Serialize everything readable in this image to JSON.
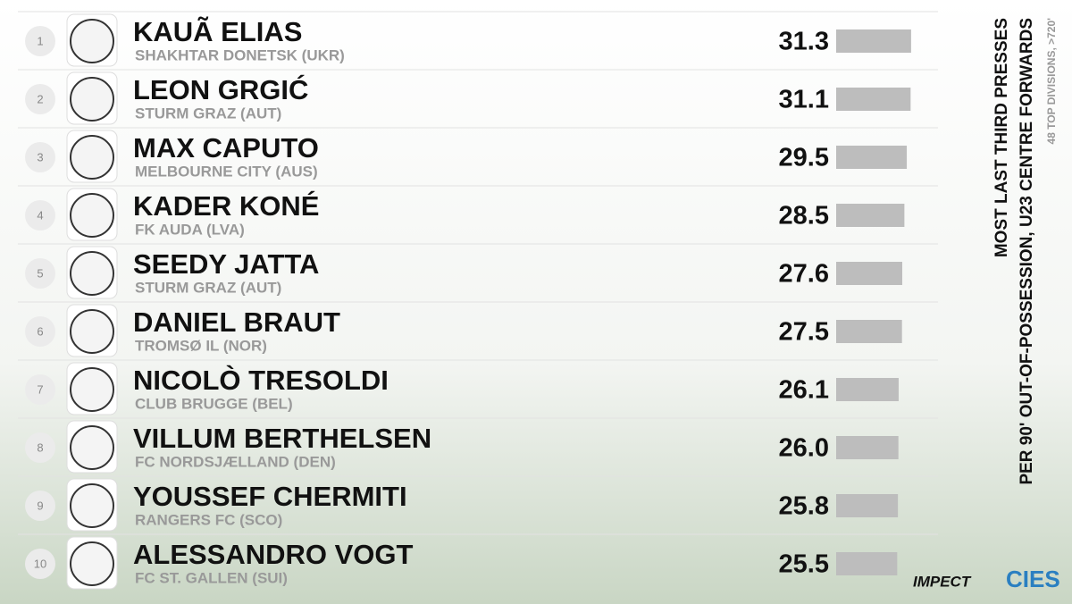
{
  "chart_data": {
    "type": "bar",
    "title": "MOST LAST THIRD PRESSES",
    "subtitle": "PER 90' OUT-OF-POSSESSION, U23 CENTRE FORWARDS",
    "note": "48 TOP DIVISIONS, >720'",
    "brands": [
      "IMPECT",
      "CIES"
    ],
    "ranks": [
      1,
      2,
      3,
      4,
      5,
      6,
      7,
      8,
      9,
      10
    ],
    "categories": [
      "KAUÃ ELIAS",
      "LEON GRGIĆ",
      "MAX CAPUTO",
      "KADER KONÉ",
      "SEEDY JATTA",
      "DANIEL BRAUT",
      "NICOLÒ TRESOLDI",
      "VILLUM BERTHELSEN",
      "YOUSSEF CHERMITI",
      "ALESSANDRO VOGT"
    ],
    "clubs": [
      "SHAKHTAR DONETSK (UKR)",
      "STURM GRAZ (AUT)",
      "MELBOURNE CITY (AUS)",
      "FK AUDA (LVA)",
      "STURM GRAZ (AUT)",
      "TROMSØ IL (NOR)",
      "CLUB BRUGGE (BEL)",
      "FC NORDSJÆLLAND (DEN)",
      "RANGERS FC (SCO)",
      "FC ST. GALLEN (SUI)"
    ],
    "values": [
      31.3,
      31.1,
      29.5,
      28.5,
      27.6,
      27.5,
      26.1,
      26.0,
      25.8,
      25.5
    ],
    "value_labels": [
      "31.3",
      "31.1",
      "29.5",
      "28.5",
      "27.6",
      "27.5",
      "26.1",
      "26.0",
      "25.8",
      "25.5"
    ],
    "color": "#bdbdbd"
  }
}
